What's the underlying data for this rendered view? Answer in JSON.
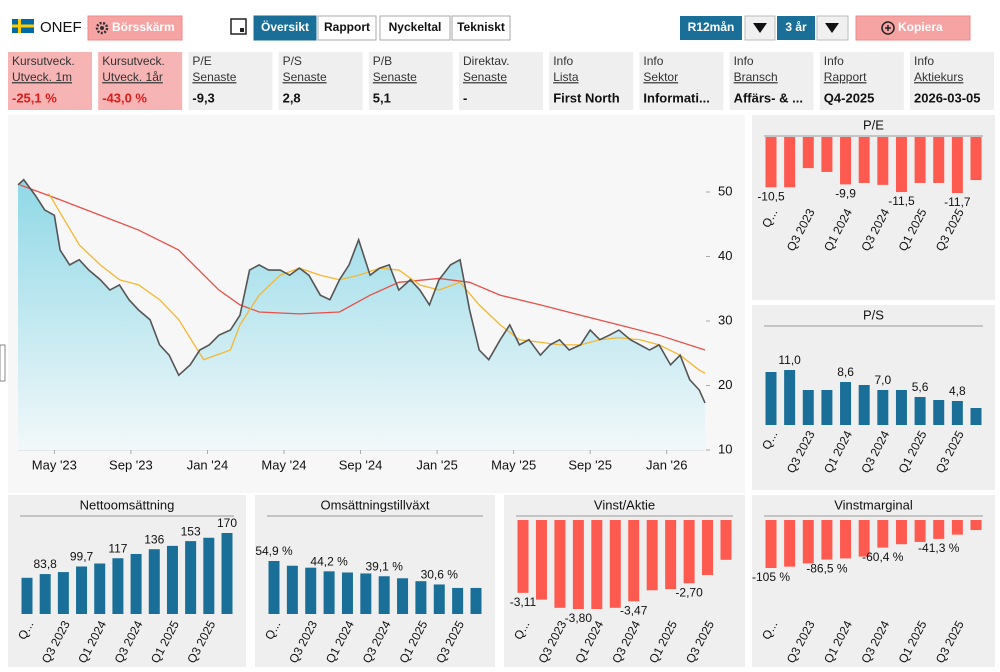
{
  "header": {
    "ticker": "ONEF",
    "screen_button": "Börsskärm",
    "tabs": [
      "Översikt",
      "Rapport",
      "Nyckeltal",
      "Tekniskt"
    ],
    "period": "R12mån",
    "range": "3 år",
    "copy_button": "Kopiera"
  },
  "cards": [
    {
      "label": "Kursutveck.",
      "sublabel": "Utveck. 1m",
      "value": "-25,1 %"
    },
    {
      "label": "Kursutveck.",
      "sublabel": "Utveck. 1år",
      "value": "-43,0 %"
    },
    {
      "label": "P/E",
      "sublabel": "Senaste",
      "value": "-9,3"
    },
    {
      "label": "P/S",
      "sublabel": "Senaste",
      "value": "2,8"
    },
    {
      "label": "P/B",
      "sublabel": "Senaste",
      "value": "5,1"
    },
    {
      "label": "Direktav.",
      "sublabel": "Senaste",
      "value": "-"
    },
    {
      "label": "Info",
      "sublabel": "Lista",
      "value": "First North"
    },
    {
      "label": "Info",
      "sublabel": "Sektor",
      "value": "Informati..."
    },
    {
      "label": "Info",
      "sublabel": "Bransch",
      "value": "Affärs- & ..."
    },
    {
      "label": "Info",
      "sublabel": "Rapport",
      "value": "Q4-2025"
    },
    {
      "label": "Info",
      "sublabel": "Aktiekurs",
      "value": "2026-03-05"
    }
  ],
  "chart_data": [
    {
      "type": "line",
      "xlim": [
        2.1,
        38.0
      ],
      "ylim": [
        10,
        60
      ],
      "xticks": [
        {
          "value": 4,
          "label": "May '23"
        },
        {
          "value": 8,
          "label": "Sep '23"
        },
        {
          "value": 12,
          "label": "Jan '24"
        },
        {
          "value": 16,
          "label": "May '24"
        },
        {
          "value": 20,
          "label": "Sep '24"
        },
        {
          "value": 24,
          "label": "Jan '25"
        },
        {
          "value": 28,
          "label": "May '25"
        },
        {
          "value": 32,
          "label": "Sep '25"
        },
        {
          "value": 36,
          "label": "Jan '26"
        }
      ],
      "yticks": [
        10,
        20,
        30,
        40,
        50
      ],
      "series": [
        {
          "color": "#555555",
          "fill": "#8fd8e6",
          "x": [
            2.1,
            2.4,
            3.0,
            3.5,
            4.0,
            4.3,
            4.8,
            5.3,
            5.8,
            6.4,
            6.9,
            7.4,
            7.9,
            8.4,
            9.0,
            9.5,
            10.0,
            10.5,
            11.1,
            11.6,
            12.1,
            12.6,
            13.2,
            13.7,
            14.2,
            14.7,
            15.2,
            15.8,
            16.3,
            16.8,
            17.3,
            17.9,
            18.4,
            18.9,
            19.4,
            19.9,
            20.5,
            21.0,
            21.5,
            22.0,
            22.6,
            23.1,
            23.6,
            24.1,
            24.7,
            25.2,
            25.7,
            26.2,
            26.7,
            27.3,
            27.8,
            28.3,
            28.8,
            29.4,
            29.9,
            30.4,
            30.9,
            31.5,
            32.0,
            32.5,
            33.0,
            33.5,
            34.1,
            34.6,
            35.1,
            35.6,
            36.2,
            36.7,
            37.2,
            37.7,
            38.0
          ],
          "values": [
            51.1,
            51.9,
            49.5,
            47.2,
            46.4,
            41,
            38.7,
            39.5,
            37.9,
            36.4,
            34.8,
            35.6,
            33.3,
            31.7,
            30.2,
            26.3,
            24.7,
            21.6,
            23.2,
            25.5,
            26.3,
            27.8,
            28.6,
            30.9,
            37.9,
            38.7,
            37.9,
            37.9,
            37.1,
            38.2,
            37.1,
            34,
            33.3,
            36.4,
            38.7,
            42.6,
            37.1,
            38.2,
            38.7,
            34.8,
            36.4,
            34.8,
            32.5,
            36.4,
            38.7,
            39.5,
            31.7,
            25.5,
            24,
            27.1,
            29.4,
            26.3,
            27.1,
            24.7,
            26.3,
            27.1,
            25.5,
            26.3,
            28.6,
            27.1,
            27.8,
            28.6,
            27.1,
            26.3,
            25.5,
            26.3,
            23.2,
            24.7,
            20.9,
            19.3,
            17.3
          ]
        },
        {
          "color": "#f5b731",
          "x": [
            3.7,
            5.3,
            6.4,
            7.4,
            8.4,
            9.5,
            10.5,
            11.8,
            13.2,
            13.7,
            14.7,
            15.8,
            16.8,
            17.9,
            18.9,
            19.9,
            21.0,
            22.0,
            23.1,
            24.1,
            25.2,
            26.2,
            27.3,
            28.3,
            29.4,
            30.4,
            31.5,
            32.5,
            33.5,
            34.6,
            35.6,
            36.7,
            37.7,
            38.0
          ],
          "values": [
            49.8,
            41.8,
            38.7,
            36.4,
            35.6,
            33.3,
            30.2,
            24,
            25.5,
            29.4,
            34,
            37.1,
            38.2,
            37.1,
            36.4,
            37.1,
            38.2,
            37.9,
            35.6,
            34.8,
            36,
            32.5,
            29.4,
            27.1,
            26.7,
            26.3,
            26.3,
            27.1,
            27.4,
            27.1,
            26.3,
            24.7,
            22.4,
            21.9
          ]
        },
        {
          "color": "#e8504a",
          "x": [
            2.2,
            4.3,
            6.4,
            8.4,
            10.5,
            12.6,
            13.7,
            14.7,
            16.8,
            18.9,
            20.5,
            22.0,
            24.1,
            25.7,
            27.3,
            29.4,
            31.5,
            33.5,
            35.6,
            37.7,
            38.0
          ],
          "values": [
            51.1,
            48.8,
            46.4,
            44.1,
            41,
            34.8,
            32.5,
            31.4,
            31.1,
            31.4,
            34,
            36,
            36.6,
            36,
            34,
            32.5,
            30.9,
            29.4,
            27.8,
            25.8,
            25.5
          ]
        }
      ]
    },
    {
      "type": "bar",
      "title": "P/E",
      "color": "#ff5a4f",
      "categories": [
        "Q...",
        null,
        "Q3 2023",
        null,
        "Q1 2024",
        null,
        "Q3 2024",
        null,
        "Q1 2025",
        null,
        "Q3 2025",
        null
      ],
      "values": [
        -10.5,
        -10.5,
        -6.5,
        -7.3,
        -9.9,
        -9.6,
        -10.0,
        -11.5,
        -9.6,
        -9.6,
        -11.7,
        -9.0
      ],
      "value_labels": [
        "-10,5",
        null,
        null,
        null,
        "-9,9",
        null,
        null,
        "-11,5",
        null,
        null,
        "-11,7",
        null
      ]
    },
    {
      "type": "bar",
      "title": "P/S",
      "color": "#1a6f99",
      "categories": [
        "Q...",
        null,
        "Q3 2023",
        null,
        "Q1 2024",
        null,
        "Q3 2024",
        null,
        "Q1 2025",
        null,
        "Q3 2025",
        null
      ],
      "values": [
        10.6,
        11.0,
        7.0,
        7.0,
        8.6,
        8.0,
        7.0,
        7.0,
        5.6,
        5.0,
        4.8,
        3.4
      ],
      "value_labels": [
        null,
        "11,0",
        null,
        null,
        "8,6",
        null,
        "7,0",
        null,
        "5,6",
        null,
        "4,8",
        null
      ]
    },
    {
      "type": "bar",
      "title": "Nettoomsättning",
      "color": "#1a6f99",
      "categories": [
        "Q...",
        null,
        "Q3 2023",
        null,
        "Q1 2024",
        null,
        "Q3 2024",
        null,
        "Q1 2025",
        null,
        "Q3 2025",
        null
      ],
      "values": [
        76,
        83.8,
        88,
        99.7,
        106,
        117,
        126,
        136,
        143,
        153,
        160,
        170
      ],
      "value_labels": [
        null,
        "83,8",
        null,
        "99,7",
        null,
        "117",
        null,
        "136",
        null,
        "153",
        null,
        "170"
      ]
    },
    {
      "type": "bar",
      "title": "Omsättningstillväxt",
      "color": "#1a6f99",
      "categories": [
        "Q...",
        null,
        "Q3 2023",
        null,
        "Q1 2024",
        null,
        "Q3 2024",
        null,
        "Q1 2025",
        null,
        "Q3 2025",
        null
      ],
      "values": [
        54.9,
        50,
        48,
        44.2,
        43,
        42,
        39.1,
        37,
        34,
        30.6,
        27,
        27
      ],
      "value_labels": [
        "54,9 %",
        null,
        null,
        "44,2 %",
        null,
        null,
        "39,1 %",
        null,
        null,
        "30,6 %",
        null,
        null
      ]
    },
    {
      "type": "bar",
      "title": "Vinst/Aktie",
      "color": "#ff5a4f",
      "categories": [
        "Q...",
        null,
        "Q3 2023",
        null,
        "Q1 2024",
        null,
        "Q3 2024",
        null,
        "Q1 2025",
        null,
        "Q3 2025",
        null
      ],
      "values": [
        -3.11,
        -3.4,
        -3.75,
        -3.8,
        -3.8,
        -3.75,
        -3.47,
        -3.0,
        -2.95,
        -2.7,
        -2.35,
        -1.7
      ],
      "value_labels": [
        "-3,11",
        null,
        null,
        "-3,80",
        null,
        null,
        "-3,47",
        null,
        null,
        "-2,70",
        null,
        null
      ]
    },
    {
      "type": "bar",
      "title": "Vinstmarginal",
      "color": "#ff5a4f",
      "categories": [
        "Q...",
        null,
        "Q3 2023",
        null,
        "Q1 2024",
        null,
        "Q3 2024",
        null,
        "Q1 2025",
        null,
        "Q3 2025",
        null
      ],
      "values": [
        -105,
        -102,
        -95,
        -86.5,
        -84,
        -80,
        -60.4,
        -53,
        -48,
        -41.3,
        -32,
        -22
      ],
      "value_labels": [
        "-105 %",
        null,
        null,
        "-86,5 %",
        null,
        null,
        "-60,4 %",
        null,
        null,
        "-41,3 %",
        null,
        null
      ]
    }
  ]
}
